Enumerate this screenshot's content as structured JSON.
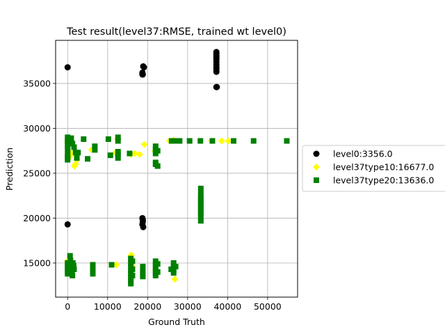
{
  "chart_data": {
    "type": "scatter",
    "title": "Test result(level37:RMSE, trained wt level0)",
    "xlabel": "Ground Truth",
    "ylabel": "Prediction",
    "xlim": [
      -3000,
      57500
    ],
    "ylim": [
      11200,
      39800
    ],
    "xticks": [
      0,
      10000,
      20000,
      30000,
      40000,
      50000
    ],
    "yticks": [
      15000,
      20000,
      25000,
      30000,
      35000
    ],
    "xtick_labels": [
      "0",
      "10000",
      "20000",
      "30000",
      "40000",
      "50000"
    ],
    "ytick_labels": [
      "15000",
      "20000",
      "25000",
      "30000",
      "35000"
    ],
    "grid": true,
    "legend_position": "right",
    "series": [
      {
        "name": "level0:3356.0",
        "marker": "circle",
        "color": "#000000",
        "points": [
          [
            0,
            36800
          ],
          [
            0,
            19300
          ],
          [
            18700,
            36000
          ],
          [
            18700,
            36200
          ],
          [
            18900,
            36900
          ],
          [
            19100,
            36800
          ],
          [
            18800,
            36000
          ],
          [
            18700,
            20000
          ],
          [
            18800,
            19600
          ],
          [
            18700,
            19300
          ],
          [
            18900,
            19000
          ],
          [
            18800,
            19800
          ],
          [
            37200,
            38500
          ],
          [
            37200,
            38300
          ],
          [
            37200,
            38100
          ],
          [
            37200,
            37900
          ],
          [
            37200,
            37700
          ],
          [
            37200,
            37400
          ],
          [
            37200,
            37100
          ],
          [
            37200,
            36800
          ],
          [
            37200,
            36600
          ],
          [
            37200,
            36300
          ],
          [
            37200,
            34600
          ],
          [
            37300,
            34600
          ]
        ]
      },
      {
        "name": "level37type10:16677.0",
        "marker": "diamond",
        "color": "#ffff00",
        "points": [
          [
            0,
            28500
          ],
          [
            200,
            27500
          ],
          [
            500,
            26800
          ],
          [
            900,
            27200
          ],
          [
            1500,
            28100
          ],
          [
            1700,
            25800
          ],
          [
            2000,
            26000
          ],
          [
            2300,
            26500
          ],
          [
            2500,
            27300
          ],
          [
            6000,
            27600
          ],
          [
            12000,
            27300
          ],
          [
            12500,
            28800
          ],
          [
            15800,
            27100
          ],
          [
            16800,
            27200
          ],
          [
            18000,
            27100
          ],
          [
            19200,
            28200
          ],
          [
            21800,
            27500
          ],
          [
            25500,
            28600
          ],
          [
            26500,
            28700
          ],
          [
            36000,
            28600
          ],
          [
            38500,
            28600
          ],
          [
            40200,
            28600
          ],
          [
            0,
            15200
          ],
          [
            500,
            14800
          ],
          [
            1200,
            14200
          ],
          [
            12200,
            14800
          ],
          [
            15900,
            15900
          ],
          [
            16200,
            14600
          ],
          [
            22000,
            14200
          ],
          [
            26800,
            13200
          ]
        ]
      },
      {
        "name": "level37type20:13636.0",
        "marker": "square",
        "color": "#008000",
        "points": [
          [
            0,
            29000
          ],
          [
            0,
            28600
          ],
          [
            0,
            28200
          ],
          [
            0,
            27700
          ],
          [
            0,
            27100
          ],
          [
            0,
            26800
          ],
          [
            0,
            26500
          ],
          [
            300,
            28800
          ],
          [
            600,
            28400
          ],
          [
            900,
            28900
          ],
          [
            1200,
            28300
          ],
          [
            1600,
            27900
          ],
          [
            2000,
            27300
          ],
          [
            2300,
            27000
          ],
          [
            2600,
            27300
          ],
          [
            2300,
            26700
          ],
          [
            4000,
            28800
          ],
          [
            5000,
            26600
          ],
          [
            6800,
            27600
          ],
          [
            6800,
            28000
          ],
          [
            10200,
            28800
          ],
          [
            10700,
            27000
          ],
          [
            12600,
            29000
          ],
          [
            12600,
            28600
          ],
          [
            12600,
            27400
          ],
          [
            12600,
            27100
          ],
          [
            12600,
            26700
          ],
          [
            15500,
            27200
          ],
          [
            22000,
            28000
          ],
          [
            22000,
            27600
          ],
          [
            22000,
            27200
          ],
          [
            22000,
            26200
          ],
          [
            22000,
            26000
          ],
          [
            22500,
            25800
          ],
          [
            22500,
            27500
          ],
          [
            26000,
            28600
          ],
          [
            26500,
            28600
          ],
          [
            27000,
            28600
          ],
          [
            28000,
            28600
          ],
          [
            30500,
            28600
          ],
          [
            33200,
            28600
          ],
          [
            36200,
            28600
          ],
          [
            41500,
            28600
          ],
          [
            46500,
            28600
          ],
          [
            54800,
            28600
          ],
          [
            33300,
            23300
          ],
          [
            33300,
            22700
          ],
          [
            33300,
            22300
          ],
          [
            33300,
            22000
          ],
          [
            33300,
            21700
          ],
          [
            33300,
            21400
          ],
          [
            33300,
            21100
          ],
          [
            33300,
            20800
          ],
          [
            33300,
            20500
          ],
          [
            33300,
            20100
          ],
          [
            33300,
            19700
          ],
          [
            0,
            15000
          ],
          [
            0,
            14700
          ],
          [
            0,
            14400
          ],
          [
            0,
            14100
          ],
          [
            0,
            13800
          ],
          [
            600,
            15800
          ],
          [
            700,
            15300
          ],
          [
            800,
            14900
          ],
          [
            900,
            14500
          ],
          [
            1000,
            14200
          ],
          [
            1100,
            13900
          ],
          [
            1200,
            13600
          ],
          [
            1300,
            15000
          ],
          [
            1500,
            14700
          ],
          [
            1600,
            14300
          ],
          [
            6300,
            14800
          ],
          [
            6300,
            14400
          ],
          [
            6300,
            14100
          ],
          [
            6300,
            13800
          ],
          [
            11000,
            14800
          ],
          [
            15800,
            15500
          ],
          [
            15800,
            15000
          ],
          [
            15800,
            14600
          ],
          [
            15800,
            14200
          ],
          [
            15800,
            13800
          ],
          [
            15800,
            13400
          ],
          [
            15800,
            13000
          ],
          [
            15800,
            12700
          ],
          [
            16200,
            15200
          ],
          [
            16200,
            14300
          ],
          [
            16200,
            13600
          ],
          [
            18800,
            14600
          ],
          [
            18800,
            14200
          ],
          [
            18800,
            13800
          ],
          [
            18800,
            13500
          ],
          [
            22000,
            15200
          ],
          [
            22000,
            14800
          ],
          [
            22000,
            14500
          ],
          [
            22000,
            14200
          ],
          [
            22000,
            13900
          ],
          [
            22000,
            13600
          ],
          [
            22500,
            14900
          ],
          [
            22500,
            14000
          ],
          [
            25900,
            14300
          ],
          [
            26500,
            15000
          ],
          [
            26500,
            14600
          ],
          [
            26500,
            14200
          ],
          [
            26500,
            13900
          ],
          [
            27000,
            14600
          ]
        ]
      }
    ]
  }
}
